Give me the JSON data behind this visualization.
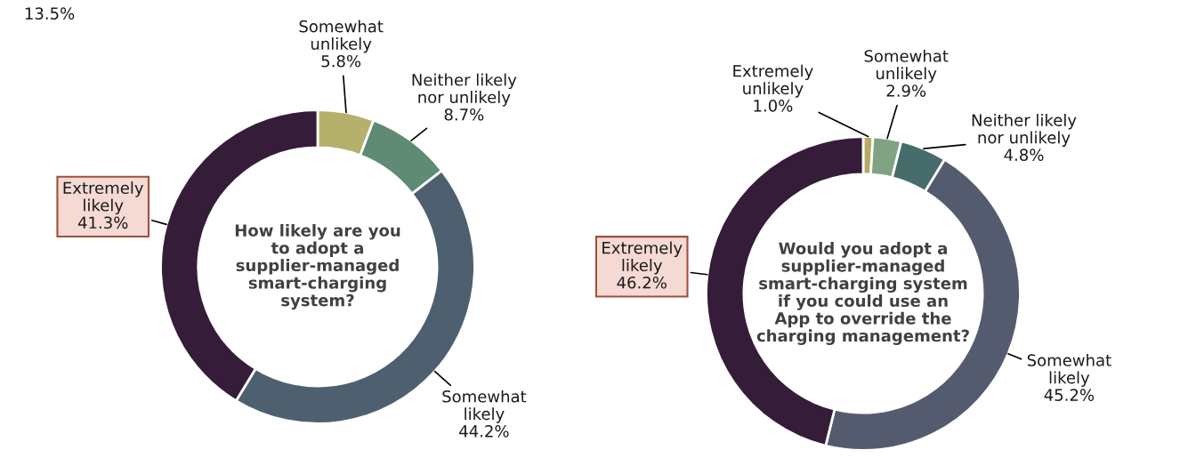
{
  "chart_data": [
    {
      "type": "donut",
      "title": "How likely are you to adopt a supplier-managed smart-charging system?",
      "categories": [
        "Somewhat unlikely",
        "Neither likely nor unlikely",
        "Somewhat likely",
        "Extremely likely"
      ],
      "values": [
        5.8,
        8.7,
        44.2,
        41.3
      ],
      "value_labels": [
        "5.8%",
        "8.7%",
        "44.2%",
        "41.3%"
      ],
      "colors": [
        "#b5b06c",
        "#5f8a74",
        "#4e6070",
        "#351c38"
      ],
      "legend": false,
      "annotations": [
        "13.5%"
      ]
    },
    {
      "type": "donut",
      "title": "Would you adopt a supplier-managed smart-charging system if you could use an App to override the charging management?",
      "categories": [
        "Extremely unlikely",
        "Somewhat unlikely",
        "Neither likely nor unlikely",
        "Somewhat likely",
        "Extremely likely"
      ],
      "values": [
        1.0,
        2.9,
        4.8,
        45.2,
        46.2
      ],
      "value_labels": [
        "1.0%",
        "2.9%",
        "4.8%",
        "45.2%",
        "46.2%"
      ],
      "colors": [
        "#b7ab64",
        "#80a483",
        "#476d6b",
        "#555b6f",
        "#351c38"
      ],
      "legend": false
    }
  ]
}
